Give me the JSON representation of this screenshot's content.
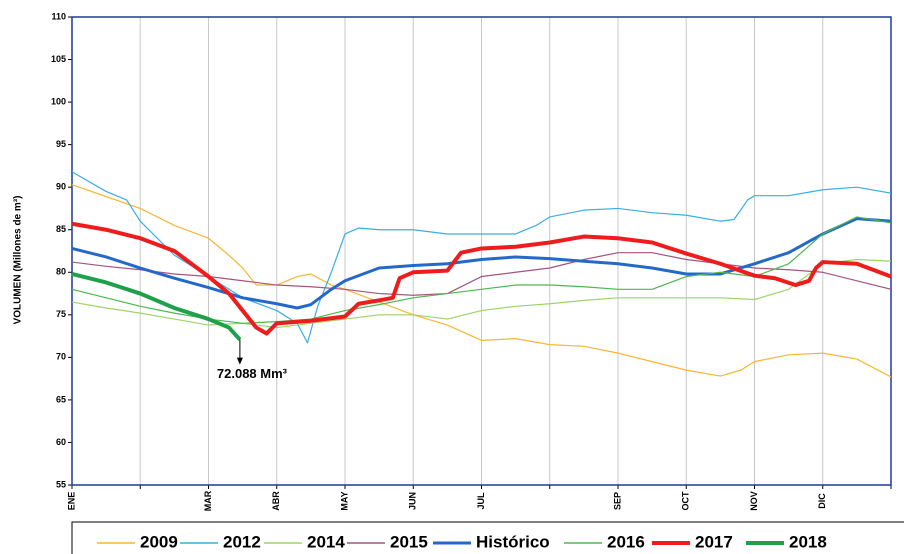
{
  "chart_data": {
    "type": "line",
    "y_label": "VOLUMEN (Millones de m³)",
    "xlim": [
      0,
      12
    ],
    "xticks": [
      {
        "value": 0,
        "label": "ENE"
      },
      {
        "value": 1,
        "label": null
      },
      {
        "value": 2,
        "label": "MAR"
      },
      {
        "value": 3,
        "label": "ABR"
      },
      {
        "value": 4,
        "label": "MAY"
      },
      {
        "value": 5,
        "label": "JUN"
      },
      {
        "value": 6,
        "label": "JUL"
      },
      {
        "value": 7,
        "label": null
      },
      {
        "value": 8,
        "label": "SEP"
      },
      {
        "value": 9,
        "label": "OCT"
      },
      {
        "value": 10,
        "label": "NOV"
      },
      {
        "value": 11,
        "label": "DIC"
      },
      {
        "value": 12,
        "label": null
      }
    ],
    "ylim": [
      55,
      110
    ],
    "yticks": [
      55,
      60,
      65,
      70,
      75,
      80,
      85,
      90,
      95,
      100,
      105,
      110
    ],
    "grid": "x",
    "legend": "bottom",
    "annotation": {
      "text": "72.088 Mm³",
      "x": 2.46,
      "y": 72.088
    },
    "series": [
      {
        "name": "2009",
        "color": "#f7b733",
        "width": 1.2,
        "x": [
          0,
          1,
          1.5,
          2,
          2.3,
          2.5,
          2.7,
          3,
          3.3,
          3.5,
          3.8,
          4,
          4.5,
          5,
          5.5,
          6,
          6.5,
          7,
          7.5,
          8,
          8.5,
          9,
          9.5,
          9.8,
          10,
          10.5,
          11,
          11.5,
          12
        ],
        "values": [
          90.3,
          87.5,
          85.5,
          84,
          82,
          80.5,
          78.5,
          78.5,
          79.5,
          79.8,
          78.5,
          78,
          76.5,
          75,
          73.8,
          72,
          72.2,
          71.5,
          71.3,
          70.5,
          69.5,
          68.5,
          67.8,
          68.5,
          69.5,
          70.3,
          70.5,
          69.8,
          67.7
        ]
      },
      {
        "name": "2012",
        "color": "#3aaee0",
        "width": 1.2,
        "x": [
          0,
          0.5,
          0.8,
          1,
          1.5,
          2,
          2.5,
          3,
          3.3,
          3.45,
          3.6,
          3.8,
          4,
          4.2,
          4.5,
          5,
          5.5,
          6,
          6.5,
          6.8,
          7,
          7.5,
          8,
          8.5,
          9,
          9.5,
          9.7,
          9.9,
          10,
          10.5,
          11,
          11.5,
          12
        ],
        "values": [
          91.8,
          89.5,
          88.5,
          86,
          82,
          79.5,
          77,
          75.5,
          74,
          71.7,
          76,
          80,
          84.5,
          85.2,
          85,
          85,
          84.5,
          84.5,
          84.5,
          85.5,
          86.5,
          87.3,
          87.5,
          87,
          86.7,
          86,
          86.2,
          88.5,
          89,
          89,
          89.7,
          90,
          89.3
        ]
      },
      {
        "name": "2014",
        "color": "#9dd46a",
        "width": 1.2,
        "x": [
          0,
          0.5,
          1,
          1.5,
          2,
          2.5,
          3,
          3.5,
          4,
          4.5,
          5,
          5.5,
          6,
          6.5,
          7,
          7.5,
          8,
          8.5,
          9,
          9.5,
          10,
          10.5,
          11,
          11.5,
          12
        ],
        "values": [
          76.5,
          75.8,
          75.2,
          74.5,
          73.8,
          74,
          73.5,
          74,
          74.5,
          75,
          75,
          74.5,
          75.5,
          76,
          76.3,
          76.7,
          77,
          77,
          77,
          77,
          76.8,
          78,
          81,
          81.5,
          81.3
        ]
      },
      {
        "name": "2015",
        "color": "#a3557f",
        "width": 1.2,
        "x": [
          0,
          0.5,
          1,
          1.5,
          2,
          2.5,
          3,
          3.5,
          4,
          4.5,
          5,
          5.5,
          6,
          6.5,
          7,
          7.5,
          8,
          8.5,
          9,
          9.5,
          10,
          10.5,
          11,
          11.5,
          12
        ],
        "values": [
          81.2,
          80.7,
          80.3,
          79.8,
          79.5,
          79,
          78.5,
          78.3,
          78,
          77.5,
          77.3,
          77.5,
          79.5,
          80,
          80.5,
          81.5,
          82.3,
          82.3,
          81.5,
          81,
          80.5,
          80.3,
          80,
          79,
          78
        ]
      },
      {
        "name": "Histórico",
        "color": "#2468c8",
        "width": 3,
        "x": [
          0,
          0.5,
          1,
          1.5,
          2,
          2.5,
          3,
          3.3,
          3.5,
          3.8,
          4,
          4.5,
          5,
          5.5,
          6,
          6.5,
          7,
          7.5,
          8,
          8.5,
          9,
          9.5,
          10,
          10.5,
          11,
          11.5,
          12
        ],
        "values": [
          82.8,
          81.8,
          80.5,
          79.3,
          78.2,
          77,
          76.3,
          75.8,
          76.2,
          78,
          79,
          80.5,
          80.8,
          81,
          81.5,
          81.8,
          81.6,
          81.3,
          81,
          80.5,
          79.8,
          79.8,
          81,
          82.3,
          84.5,
          86.3,
          86
        ]
      },
      {
        "name": "2016",
        "color": "#4db84d",
        "width": 1.2,
        "x": [
          0,
          0.5,
          1,
          1.5,
          2,
          2.5,
          3,
          3.5,
          4,
          4.5,
          5,
          5.5,
          6,
          6.5,
          7,
          7.5,
          8,
          8.5,
          9,
          9.5,
          10,
          10.5,
          11,
          11.5,
          12
        ],
        "values": [
          78,
          77,
          76,
          75.2,
          74.5,
          74,
          74.2,
          74.5,
          75.5,
          76.2,
          77,
          77.5,
          78,
          78.5,
          78.5,
          78.3,
          78,
          78,
          79.5,
          80,
          79.5,
          81,
          84.5,
          86.5,
          85.8
        ]
      },
      {
        "name": "2017",
        "color": "#ee1c1c",
        "width": 4,
        "x": [
          0,
          0.5,
          1,
          1.5,
          2,
          2.3,
          2.5,
          2.7,
          2.85,
          3,
          3.5,
          4,
          4.2,
          4.5,
          4.7,
          4.8,
          5,
          5.5,
          5.7,
          6,
          6.5,
          7,
          7.5,
          8,
          8.5,
          9,
          9.5,
          10,
          10.3,
          10.6,
          10.8,
          10.9,
          11,
          11.5,
          12
        ],
        "values": [
          85.7,
          85,
          84,
          82.5,
          79.5,
          77.5,
          75.5,
          73.5,
          72.8,
          74,
          74.3,
          74.8,
          76.3,
          76.7,
          77,
          79.3,
          80,
          80.2,
          82.3,
          82.8,
          83,
          83.5,
          84.2,
          84,
          83.5,
          82.2,
          81,
          79.6,
          79.3,
          78.5,
          79,
          80.5,
          81.2,
          81,
          79.5
        ]
      },
      {
        "name": "2018",
        "color": "#1fa04a",
        "width": 4,
        "x": [
          0,
          0.5,
          1,
          1.5,
          2,
          2.3,
          2.46
        ],
        "values": [
          79.8,
          78.8,
          77.5,
          75.8,
          74.5,
          73.5,
          72.088
        ]
      }
    ]
  }
}
